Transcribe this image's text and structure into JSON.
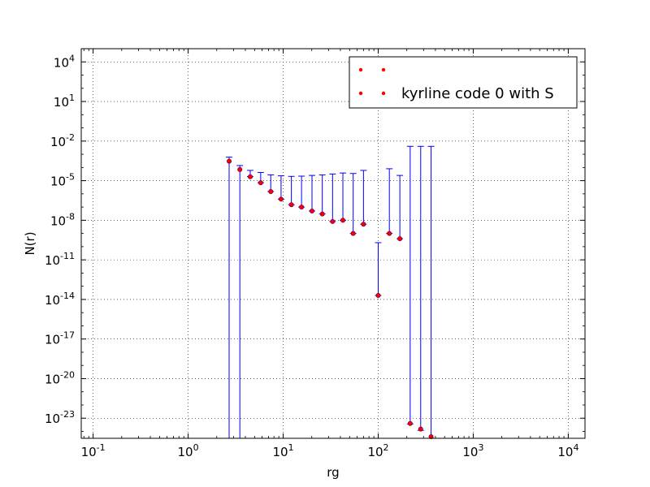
{
  "chart_data": {
    "type": "scatter",
    "title": "",
    "xlabel": "rg",
    "ylabel": "N(r)",
    "xscale": "log",
    "yscale": "log",
    "xlim": [
      0.075,
      15000
    ],
    "ylim": [
      3e-25,
      100000.0
    ],
    "grid": true,
    "legend_position": "top-right",
    "x_ticks": [
      {
        "value": 0.1,
        "base": "10",
        "exp": "-1"
      },
      {
        "value": 1,
        "base": "10",
        "exp": "0"
      },
      {
        "value": 10,
        "base": "10",
        "exp": "1"
      },
      {
        "value": 100,
        "base": "10",
        "exp": "2"
      },
      {
        "value": 1000,
        "base": "10",
        "exp": "3"
      },
      {
        "value": 10000,
        "base": "10",
        "exp": "4"
      }
    ],
    "y_ticks": [
      {
        "value": 1e-23,
        "base": "10",
        "exp": "-23"
      },
      {
        "value": 1e-20,
        "base": "10",
        "exp": "-20"
      },
      {
        "value": 1e-17,
        "base": "10",
        "exp": "-17"
      },
      {
        "value": 1e-14,
        "base": "10",
        "exp": "-14"
      },
      {
        "value": 1e-11,
        "base": "10",
        "exp": "-11"
      },
      {
        "value": 1e-08,
        "base": "10",
        "exp": "-8"
      },
      {
        "value": 1e-05,
        "base": "10",
        "exp": "-5"
      },
      {
        "value": 0.01,
        "base": "10",
        "exp": "-2"
      },
      {
        "value": 10,
        "base": "10",
        "exp": "1"
      },
      {
        "value": 10000,
        "base": "10",
        "exp": "4"
      }
    ],
    "series": [
      {
        "label": "",
        "marker_color": "#ff0000",
        "error_color": "#0000ff",
        "x": [
          2.7,
          3.5,
          4.5,
          5.8,
          7.4,
          9.5,
          12.2,
          15.6,
          20.1,
          25.8,
          33.1,
          42.5,
          54.5,
          70,
          100,
          131,
          169,
          217,
          280,
          360
        ],
        "y": [
          0.0003,
          7e-05,
          2e-05,
          7e-06,
          1.5e-06,
          4e-07,
          1.5e-07,
          1e-07,
          5e-08,
          3e-08,
          8e-09,
          1e-08,
          1e-09,
          5e-09,
          2e-14,
          1e-09,
          4e-10,
          4e-24,
          1.5e-24,
          4e-25
        ],
        "y_err_upper": [
          0.0003,
          7e-05,
          4e-05,
          3.5e-05,
          2.6e-05,
          2.3e-05,
          2.1e-05,
          2.2e-05,
          2.5e-05,
          2.7e-05,
          3.2e-05,
          3.8e-05,
          3.5e-05,
          6e-05,
          2e-10,
          8e-05,
          2.5e-05,
          0.004,
          0.004,
          0.004
        ],
        "y_err_lower": [
          0.0003,
          7e-05,
          3e-25,
          3e-25,
          3e-25,
          3e-25,
          3e-25,
          3e-25,
          3e-25,
          3e-25,
          3e-25,
          3e-25,
          3e-25,
          3e-25,
          3e-25,
          3e-25,
          3e-25,
          3e-25,
          3e-25,
          3e-25
        ]
      }
    ],
    "legend": [
      {
        "label": ""
      },
      {
        "label": "kyrline code 0 with S"
      }
    ]
  }
}
